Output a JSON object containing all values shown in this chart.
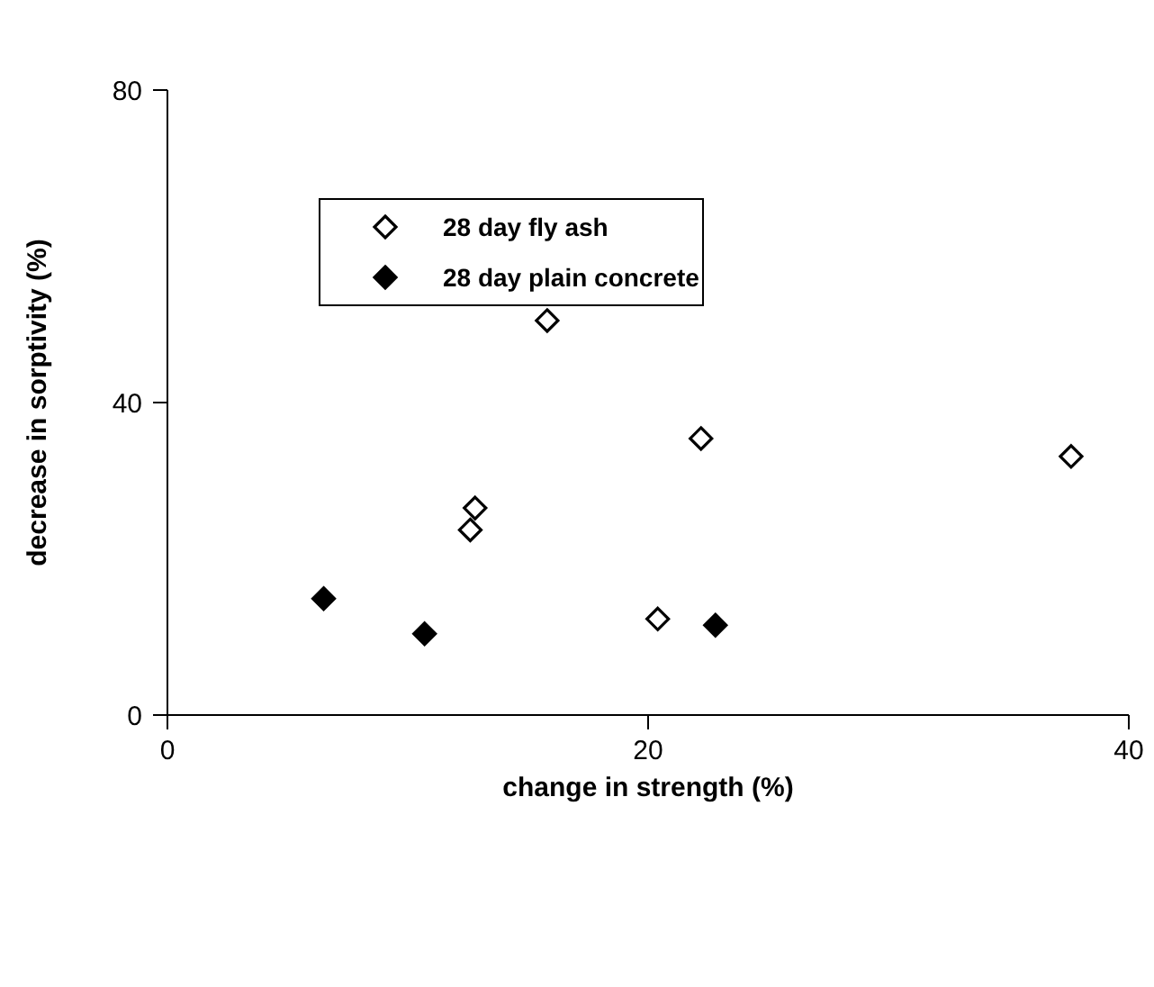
{
  "chart_data": {
    "type": "scatter",
    "xlabel": "change in strength (%)",
    "ylabel": "decrease in sorptivity (%)",
    "xlim": [
      0,
      40
    ],
    "xticks": [
      0,
      20,
      40
    ],
    "ylim": [
      0,
      80
    ],
    "yticks": [
      0,
      40,
      80
    ],
    "grid": false,
    "legend": "top",
    "marker": "diamond",
    "series": [
      {
        "name": "28 day fly ash",
        "color": "#ffffff",
        "x": [
          15.8,
          22.2,
          37.6,
          12.8,
          12.6,
          20.4
        ],
        "values": [
          50.5,
          35.4,
          33.1,
          26.5,
          23.7,
          12.3
        ]
      },
      {
        "name": "28 day plain concrete",
        "color": "#000000",
        "x": [
          6.5,
          10.7,
          22.8
        ],
        "values": [
          14.9,
          10.4,
          11.5
        ]
      }
    ]
  }
}
